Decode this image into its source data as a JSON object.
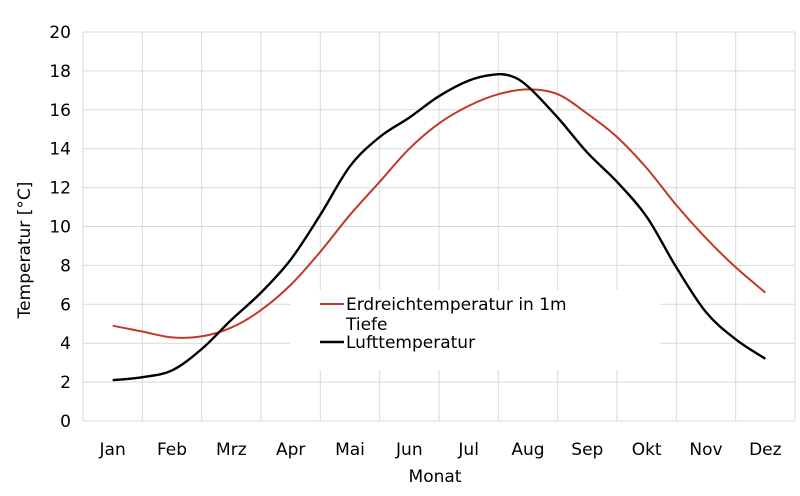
{
  "chart_data": {
    "type": "line",
    "xlabel": "Monat",
    "ylabel": "Temperatur [°C]",
    "ylim": [
      0,
      20
    ],
    "yticks": [
      0,
      2,
      4,
      6,
      8,
      10,
      12,
      14,
      16,
      18,
      20
    ],
    "grid": true,
    "legend_position": "center-right",
    "categories": [
      "Jan",
      "Feb",
      "Mrz",
      "Apr",
      "Mai",
      "Jun",
      "Jul",
      "Aug",
      "Sep",
      "Okt",
      "Nov",
      "Dez"
    ],
    "series": [
      {
        "name": "Erdreichtemperatur in 1m Tiefe",
        "color": "#c0392b",
        "x": [
          1,
          1.5,
          2,
          2.5,
          3,
          3.5,
          4,
          4.5,
          5,
          5.5,
          6,
          6.5,
          7,
          7.5,
          8,
          8.5,
          9,
          9.5,
          10,
          10.5,
          11,
          11.5,
          12
        ],
        "values": [
          4.9,
          4.6,
          4.3,
          4.35,
          4.8,
          5.7,
          7.0,
          8.7,
          10.6,
          12.3,
          14.0,
          15.3,
          16.2,
          16.8,
          17.05,
          16.8,
          15.8,
          14.6,
          13.0,
          11.1,
          9.4,
          7.9,
          6.6
        ]
      },
      {
        "name": "Lufttemperatur",
        "color": "#000000",
        "x": [
          1,
          1.5,
          2,
          2.5,
          3,
          3.5,
          4,
          4.5,
          5,
          5.5,
          6,
          6.5,
          7,
          7.4,
          7.7,
          8,
          8.5,
          9,
          9.5,
          10,
          10.5,
          11,
          11.5,
          12
        ],
        "values": [
          2.1,
          2.25,
          2.6,
          3.7,
          5.2,
          6.6,
          8.3,
          10.6,
          13.1,
          14.6,
          15.6,
          16.7,
          17.5,
          17.8,
          17.75,
          17.2,
          15.6,
          13.8,
          12.3,
          10.5,
          7.9,
          5.6,
          4.2,
          3.2
        ]
      }
    ]
  }
}
